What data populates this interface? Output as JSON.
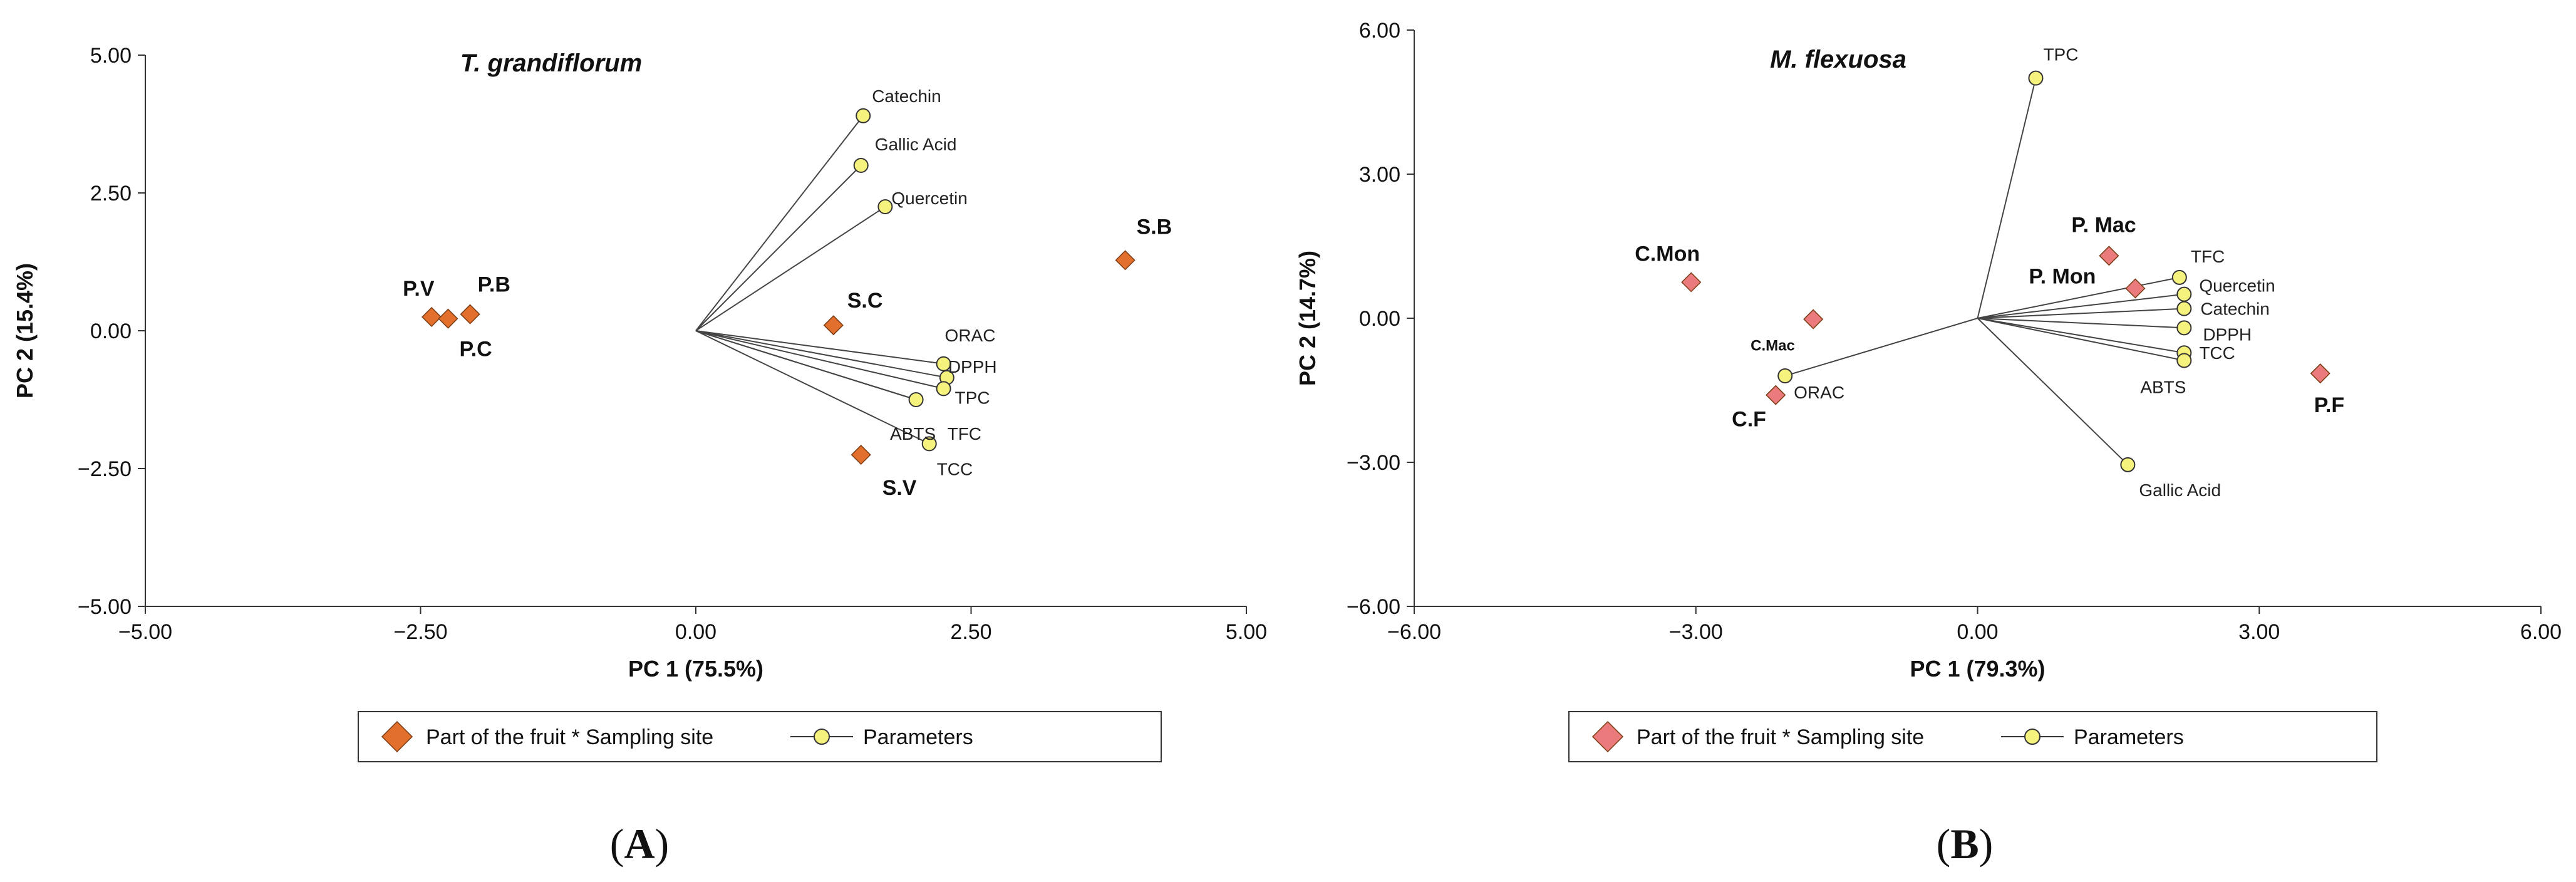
{
  "chart_data": [
    {
      "type": "scatter",
      "panel_label": "A",
      "title": "T. grandiflorum",
      "xlabel": "PC 1 (75.5%)",
      "ylabel": "PC 2 (15.4%)",
      "xlim": [
        -5,
        5
      ],
      "ylim": [
        -5,
        5
      ],
      "x_ticks": [
        -5,
        -2.5,
        0,
        2.5,
        5
      ],
      "x_tick_labels": [
        "−5.00",
        "−2.50",
        "0.00",
        "2.50",
        "5.00"
      ],
      "y_ticks": [
        -5,
        -2.5,
        0,
        2.5,
        5
      ],
      "y_tick_labels": [
        "−5.00",
        "−2.50",
        "0.00",
        "2.50",
        "5.00"
      ],
      "observations": [
        {
          "label": "P.V",
          "x": -2.4,
          "y": 0.25
        },
        {
          "label": "P.C",
          "x": -2.25,
          "y": 0.22
        },
        {
          "label": "P.B",
          "x": -2.05,
          "y": 0.3
        },
        {
          "label": "S.C",
          "x": 1.25,
          "y": 0.1
        },
        {
          "label": "S.V",
          "x": 1.5,
          "y": -2.25
        },
        {
          "label": "S.B",
          "x": 3.9,
          "y": 1.28
        }
      ],
      "variables": [
        {
          "label": "Catechin",
          "x": 1.52,
          "y": 3.9
        },
        {
          "label": "Gallic Acid",
          "x": 1.5,
          "y": 3.0
        },
        {
          "label": "Quercetin",
          "x": 1.72,
          "y": 2.25
        },
        {
          "label": "ORAC",
          "x": 2.25,
          "y": -0.6
        },
        {
          "label": "DPPH",
          "x": 2.28,
          "y": -0.85
        },
        {
          "label": "TPC",
          "x": 2.25,
          "y": -1.05
        },
        {
          "label": "TFC",
          "x": 2.0,
          "y": -1.25
        },
        {
          "label": "ABTS",
          "x": 2.0,
          "y": -1.25
        },
        {
          "label": "TCC",
          "x": 2.12,
          "y": -2.05
        }
      ],
      "legend": {
        "observation_label": "Part of the fruit * Sampling site",
        "variable_label": "Parameters"
      },
      "colors": {
        "observation": "#e2702c",
        "variable": "#f6f27e"
      }
    },
    {
      "type": "scatter",
      "panel_label": "B",
      "title": "M. flexuosa",
      "xlabel": "PC 1 (79.3%)",
      "ylabel": "PC 2 (14.7%)",
      "xlim": [
        -6,
        6
      ],
      "ylim": [
        -6,
        6
      ],
      "x_ticks": [
        -6,
        -3,
        0,
        3,
        6
      ],
      "x_tick_labels": [
        "−6.00",
        "−3.00",
        "0.00",
        "3.00",
        "6.00"
      ],
      "y_ticks": [
        -6,
        -3,
        0,
        3,
        6
      ],
      "y_tick_labels": [
        "−6.00",
        "−3.00",
        "0.00",
        "3.00",
        "6.00"
      ],
      "observations": [
        {
          "label": "C.Mon",
          "x": -3.05,
          "y": 0.75
        },
        {
          "label": "C.Mac",
          "x": -1.75,
          "y": -0.02
        },
        {
          "label": "C.F",
          "x": -2.15,
          "y": -1.6
        },
        {
          "label": "P. Mac",
          "x": 1.4,
          "y": 1.3
        },
        {
          "label": "P. Mon",
          "x": 1.68,
          "y": 0.62
        },
        {
          "label": "P.F",
          "x": 3.65,
          "y": -1.15
        }
      ],
      "variables": [
        {
          "label": "TPC",
          "x": 0.62,
          "y": 5.0
        },
        {
          "label": "TFC",
          "x": 2.15,
          "y": 0.85
        },
        {
          "label": "Quercetin",
          "x": 2.2,
          "y": 0.5
        },
        {
          "label": "Catechin",
          "x": 2.2,
          "y": 0.2
        },
        {
          "label": "DPPH",
          "x": 2.2,
          "y": -0.2
        },
        {
          "label": "TCC",
          "x": 2.2,
          "y": -0.72
        },
        {
          "label": "ABTS",
          "x": 2.2,
          "y": -0.88
        },
        {
          "label": "ORAC",
          "x": -2.05,
          "y": -1.2
        },
        {
          "label": "Gallic  Acid",
          "x": 1.6,
          "y": -3.05
        }
      ],
      "legend": {
        "observation_label": "Part of the fruit * Sampling site",
        "variable_label": "Parameters"
      },
      "colors": {
        "observation": "#ea7a7c",
        "variable": "#f6f27e"
      }
    }
  ]
}
